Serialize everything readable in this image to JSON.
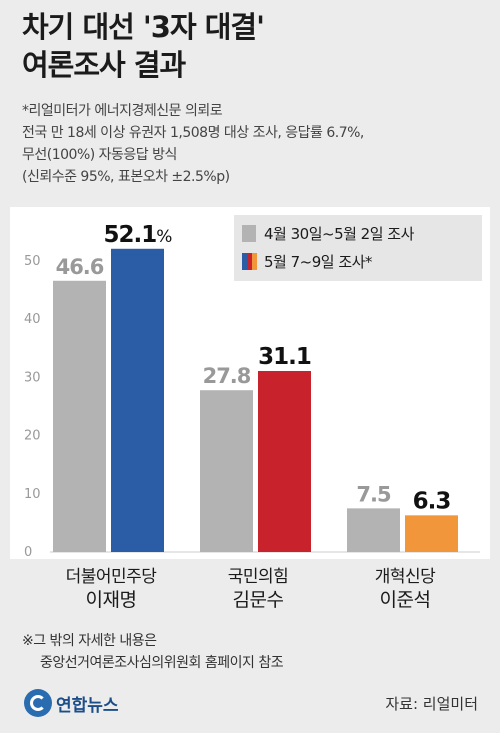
{
  "header": {
    "title_line1": "차기 대선 '3자 대결'",
    "title_line2": "여론조사 결과"
  },
  "survey_note": [
    "*리얼미터가 에너지경제신문 의뢰로",
    "전국 만 18세 이상 유권자 1,508명 대상 조사, 응답률 6.7%,",
    "무선(100%) 자동응답 방식",
    "(신뢰수준 95%, 표본오차  ±2.5%p)"
  ],
  "chart_data": {
    "type": "bar",
    "categories": [
      {
        "party": "더불어민주당",
        "candidate": "이재명"
      },
      {
        "party": "국민의힘",
        "candidate": "김문수"
      },
      {
        "party": "개혁신당",
        "candidate": "이준석"
      }
    ],
    "series": [
      {
        "name": "4월 30일~5월 2일 조사",
        "values": [
          46.6,
          27.8,
          7.5
        ],
        "color": "#b3b3b3"
      },
      {
        "name": "5월 7~9일 조사*",
        "values": [
          52.1,
          31.1,
          6.3
        ],
        "colors": [
          "#2b5ca6",
          "#c8232c",
          "#f2963b"
        ]
      }
    ],
    "ylim": [
      0,
      55
    ],
    "yticks": [
      "0",
      "10",
      "20",
      "30",
      "40",
      "50"
    ],
    "legend_position": "top-right",
    "grid": false
  },
  "footnote": [
    "※그 밖의 자세한 내용은",
    "중앙선거여론조사심의위원회 홈페이지 참조"
  ],
  "logo_text": "연합뉴스",
  "source": "자료: 리얼미터"
}
